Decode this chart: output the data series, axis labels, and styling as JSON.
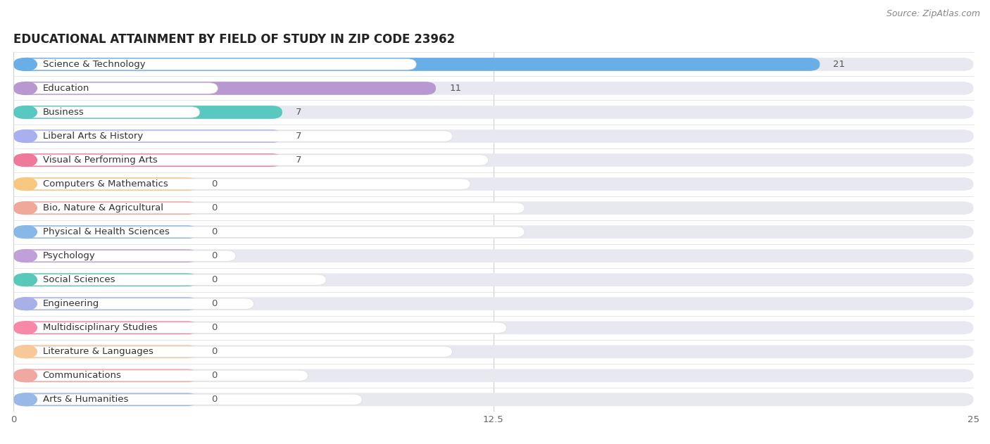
{
  "title": "EDUCATIONAL ATTAINMENT BY FIELD OF STUDY IN ZIP CODE 23962",
  "source": "Source: ZipAtlas.com",
  "categories": [
    "Science & Technology",
    "Education",
    "Business",
    "Liberal Arts & History",
    "Visual & Performing Arts",
    "Computers & Mathematics",
    "Bio, Nature & Agricultural",
    "Physical & Health Sciences",
    "Psychology",
    "Social Sciences",
    "Engineering",
    "Multidisciplinary Studies",
    "Literature & Languages",
    "Communications",
    "Arts & Humanities"
  ],
  "values": [
    21,
    11,
    7,
    7,
    7,
    0,
    0,
    0,
    0,
    0,
    0,
    0,
    0,
    0,
    0
  ],
  "bar_colors": [
    "#6aaee8",
    "#b898d0",
    "#58c8c0",
    "#a8b0f0",
    "#f07898",
    "#f8c880",
    "#f0a898",
    "#88b8e8",
    "#c0a0d8",
    "#58c8b8",
    "#a8b0e8",
    "#f888a8",
    "#f8c898",
    "#f0a8a0",
    "#98b8e8"
  ],
  "zero_bar_width": 4.8,
  "xlim": [
    0,
    25
  ],
  "xticks": [
    0,
    12.5,
    25
  ],
  "bg_bar_color": "#e8e8f0",
  "title_fontsize": 12,
  "label_fontsize": 9.5,
  "value_fontsize": 9.5,
  "source_fontsize": 9
}
